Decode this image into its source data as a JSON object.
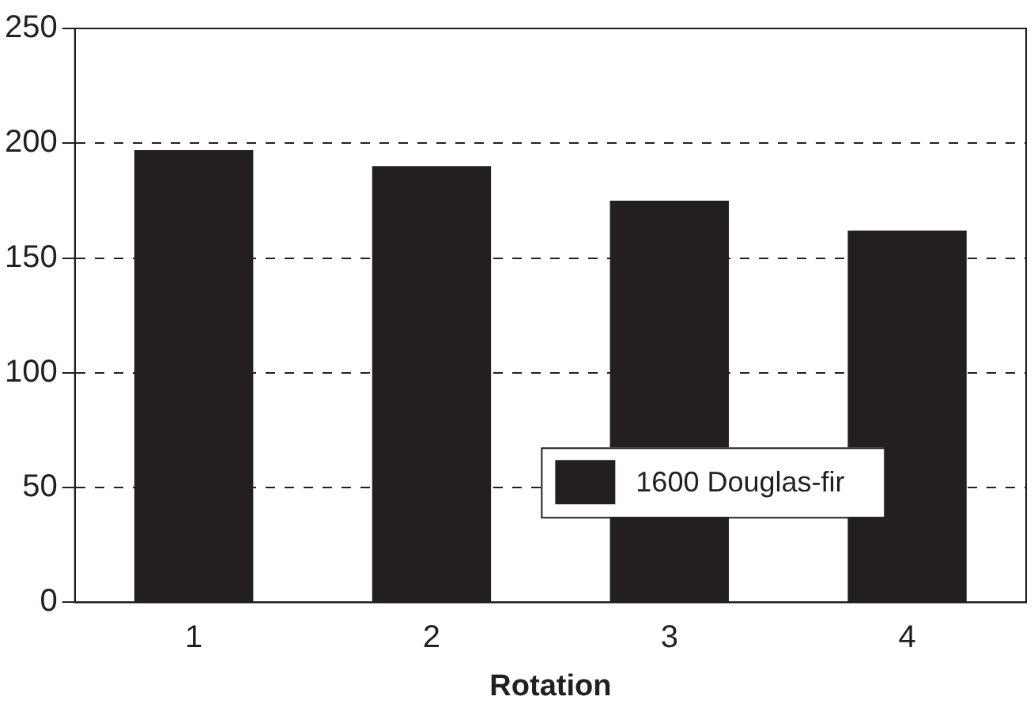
{
  "chart_data": {
    "type": "bar",
    "xlabel": "Rotation",
    "categories": [
      "1",
      "2",
      "3",
      "4"
    ],
    "series": [
      {
        "name": "1600 Douglas-fir",
        "color": "#231f20",
        "values": [
          197,
          190,
          175,
          162
        ]
      }
    ],
    "ylim": [
      0,
      250
    ],
    "yticks": [
      0,
      50,
      100,
      150,
      200,
      250
    ],
    "grid": "y",
    "legend": "bottom right"
  }
}
